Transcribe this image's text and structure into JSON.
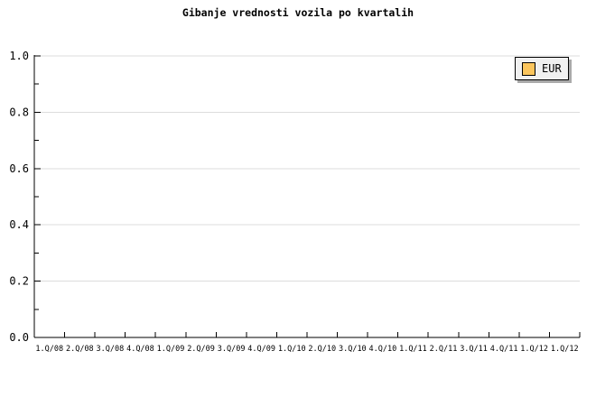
{
  "chart_data": {
    "type": "line",
    "title": "Gibanje vrednosti vozila po kvartalih",
    "categories": [
      "1.Q/08",
      "2.Q/08",
      "3.Q/08",
      "4.Q/08",
      "1.Q/09",
      "2.Q/09",
      "3.Q/09",
      "4.Q/09",
      "1.Q/10",
      "2.Q/10",
      "3.Q/10",
      "4.Q/10",
      "1.Q/11",
      "2.Q/11",
      "3.Q/11",
      "4.Q/11",
      "1.Q/12",
      "1.Q/12"
    ],
    "series": [
      {
        "name": "EUR",
        "values": [],
        "color": "#fbc55d"
      }
    ],
    "xlabel": "",
    "ylabel": "",
    "ylim": [
      0,
      1
    ],
    "y_tick_labels": [
      "0.0",
      "0.2",
      "0.4",
      "0.6",
      "0.8",
      "1.0"
    ],
    "y_minor_tick_step": 0.1,
    "grid": "horizontal-major",
    "legend_position": "top-right"
  },
  "legend": {
    "items": [
      {
        "label": "EUR",
        "swatch_color": "#fbc55d"
      }
    ]
  },
  "colors": {
    "background": "#ffffff",
    "axis": "#000000",
    "gridline": "#dddddd",
    "text": "#000000",
    "legend_bg": "#f0f0f0",
    "legend_border": "#000000",
    "legend_shadow": "#aaaaaa"
  }
}
